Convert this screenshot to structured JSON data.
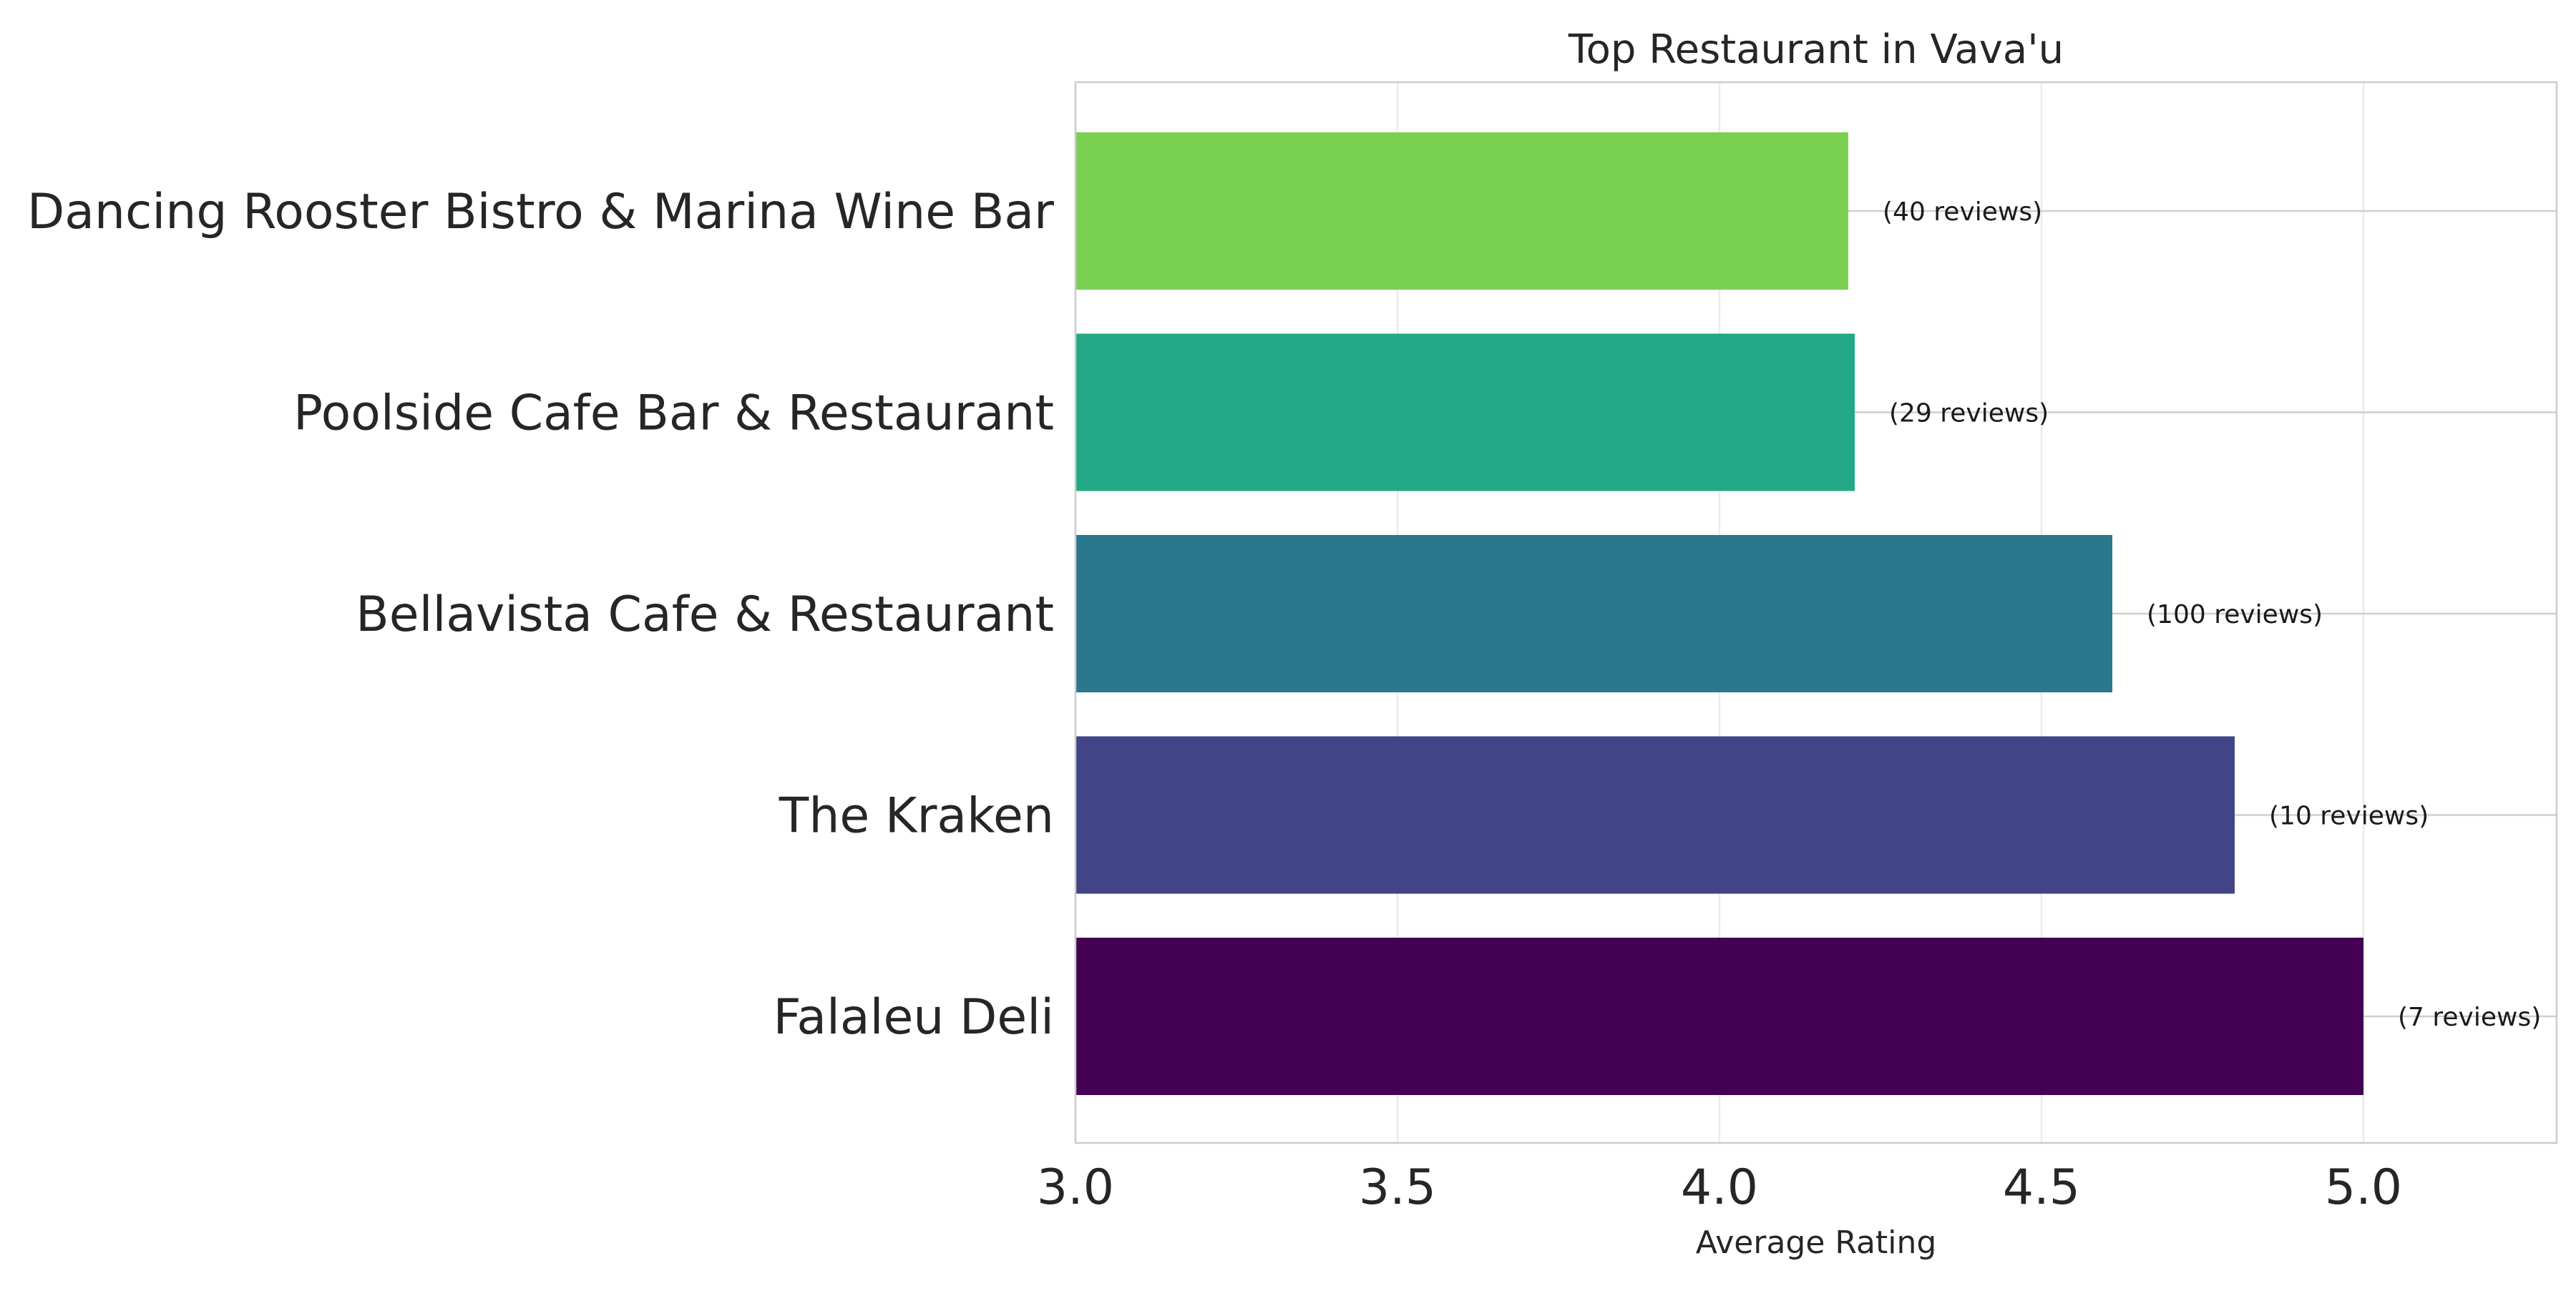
{
  "chart_data": {
    "type": "bar",
    "orientation": "horizontal",
    "title": "Top Restaurant in Vava'u",
    "xlabel": "Average Rating",
    "ylabel": "",
    "xlim": [
      3.0,
      5.3
    ],
    "xticks": [
      "3.0",
      "3.5",
      "4.0",
      "4.5",
      "5.0"
    ],
    "grid": true,
    "categories": [
      "Dancing Rooster Bistro & Marina Wine Bar",
      "Poolside Cafe Bar & Restaurant",
      "Bellavista Cafe & Restaurant",
      "The Kraken",
      "Falaleu Deli"
    ],
    "values": [
      4.2,
      4.21,
      4.61,
      4.8,
      5.0
    ],
    "data_labels": [
      "(40 reviews)",
      "(29 reviews)",
      "(100 reviews)",
      "(10 reviews)",
      "(7 reviews)"
    ],
    "colors": [
      "#7ad151",
      "#22a884",
      "#2a788e",
      "#414487",
      "#440154"
    ]
  }
}
